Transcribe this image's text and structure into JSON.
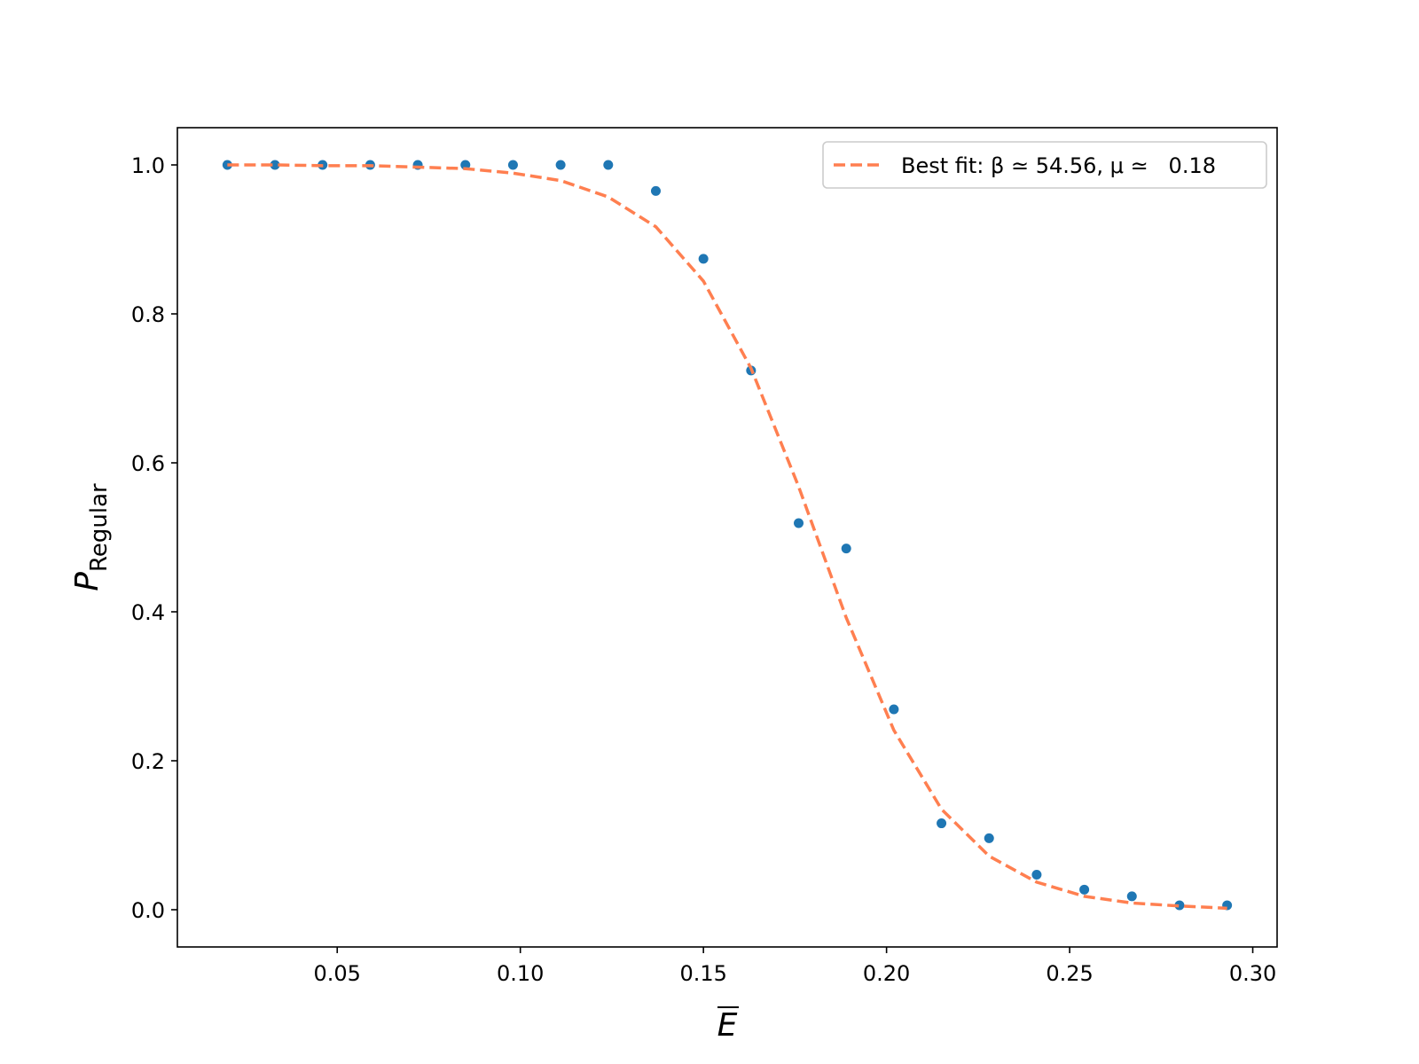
{
  "chart_data": {
    "type": "scatter",
    "xlabel": "E",
    "ylabel": "P",
    "ylabel_sub": "Regular",
    "x": [
      0.02,
      0.033,
      0.046,
      0.059,
      0.072,
      0.085,
      0.098,
      0.111,
      0.124,
      0.137,
      0.15,
      0.163,
      0.176,
      0.189,
      0.202,
      0.215,
      0.228,
      0.241,
      0.254,
      0.267,
      0.28,
      0.293
    ],
    "series": [
      {
        "type": "scatter",
        "color": "#1f77b4",
        "values": [
          1,
          1,
          1,
          1,
          1,
          1,
          1,
          1,
          1,
          0.965,
          0.874,
          0.724,
          0.519,
          0.485,
          0.269,
          0.116,
          0.096,
          0.047,
          0.027,
          0.018,
          0.006,
          0.006
        ]
      },
      {
        "type": "line",
        "name": "Best fit: β ≃ 54.56, μ ≃   0.18",
        "color": "#ff7f50",
        "dashed": true,
        "values": [
          1.0,
          1.0,
          0.999,
          0.999,
          0.997,
          0.995,
          0.989,
          0.979,
          0.957,
          0.917,
          0.844,
          0.727,
          0.568,
          0.392,
          0.241,
          0.135,
          0.072,
          0.037,
          0.018,
          0.009,
          0.005,
          0.002
        ]
      }
    ],
    "xlim": [
      0.00635,
      0.30665
    ],
    "ylim": [
      -0.05,
      1.05
    ],
    "xticks": [
      0.05,
      {
        "value": 0.1,
        "label": "0.10"
      },
      0.15,
      {
        "value": 0.2,
        "label": "0.20"
      },
      0.25,
      {
        "value": 0.3,
        "label": "0.30"
      }
    ],
    "yticks": [
      {
        "value": 0,
        "label": "0.0"
      },
      0.2,
      0.4,
      0.6,
      0.8,
      {
        "value": 1,
        "label": "1.0"
      }
    ],
    "legend": "upper right"
  }
}
